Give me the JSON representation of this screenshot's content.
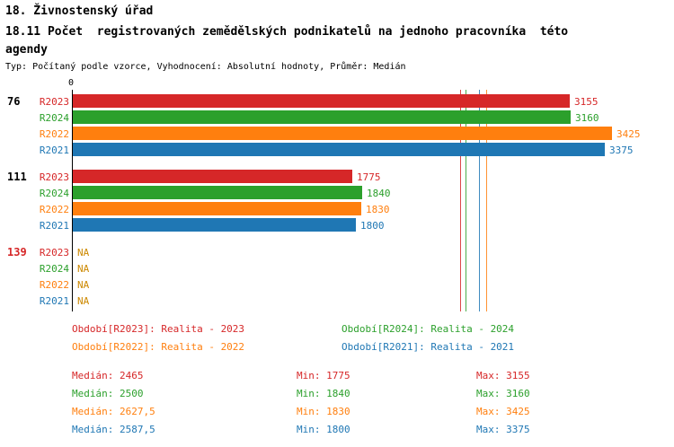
{
  "header": {
    "title": "18. Živnostenský úřad",
    "subtitle": "18.11 Počet  registrovaných zemědělských podnikatelů na jednoho pracovníka  této agendy",
    "meta": "Typ: Počítaný podle vzorce, Vyhodnocení: Absolutní hodnoty, Průměr: Medián"
  },
  "chart_data": {
    "type": "bar",
    "orientation": "horizontal",
    "x_axis": {
      "origin_label": "0",
      "xlim": [
        0,
        3800
      ],
      "grid": false
    },
    "na_color": "#cc8800",
    "series": [
      {
        "name": "R2023",
        "color": "#d62728",
        "legend": "Období[R2023]: Realita - 2023",
        "median_value": 2465,
        "median_text": "Medián: 2465",
        "min_text": "Min: 1775",
        "max_text": "Max: 3155"
      },
      {
        "name": "R2024",
        "color": "#2ca02c",
        "legend": "Období[R2024]: Realita - 2024",
        "median_value": 2500,
        "median_text": "Medián: 2500",
        "min_text": "Min: 1840",
        "max_text": "Max: 3160"
      },
      {
        "name": "R2022",
        "color": "#ff7f0e",
        "legend": "Období[R2022]: Realita - 2022",
        "median_value": 2627.5,
        "median_text": "Medián: 2627,5",
        "min_text": "Min: 1830",
        "max_text": "Max: 3425"
      },
      {
        "name": "R2021",
        "color": "#1f77b4",
        "legend": "Období[R2021]: Realita - 2021",
        "median_value": 2587.5,
        "median_text": "Medián: 2587,5",
        "min_text": "Min: 1800",
        "max_text": "Max: 3375"
      }
    ],
    "groups": [
      {
        "label": "76",
        "label_color": "#000000",
        "bars": [
          {
            "series": "R2023",
            "value": 3155,
            "value_label": "3155"
          },
          {
            "series": "R2024",
            "value": 3160,
            "value_label": "3160"
          },
          {
            "series": "R2022",
            "value": 3425,
            "value_label": "3425"
          },
          {
            "series": "R2021",
            "value": 3375,
            "value_label": "3375"
          }
        ]
      },
      {
        "label": "111",
        "label_color": "#000000",
        "bars": [
          {
            "series": "R2023",
            "value": 1775,
            "value_label": "1775"
          },
          {
            "series": "R2024",
            "value": 1840,
            "value_label": "1840"
          },
          {
            "series": "R2022",
            "value": 1830,
            "value_label": "1830"
          },
          {
            "series": "R2021",
            "value": 1800,
            "value_label": "1800"
          }
        ]
      },
      {
        "label": "139",
        "label_color": "#d62728",
        "bars": [
          {
            "series": "R2023",
            "value": null,
            "value_label": "NA"
          },
          {
            "series": "R2024",
            "value": null,
            "value_label": "NA"
          },
          {
            "series": "R2022",
            "value": null,
            "value_label": "NA"
          },
          {
            "series": "R2021",
            "value": null,
            "value_label": "NA"
          }
        ]
      }
    ],
    "legend_layout": [
      [
        "R2023",
        "R2024"
      ],
      [
        "R2022",
        "R2021"
      ]
    ],
    "stats_order": [
      "R2023",
      "R2024",
      "R2022",
      "R2021"
    ]
  }
}
